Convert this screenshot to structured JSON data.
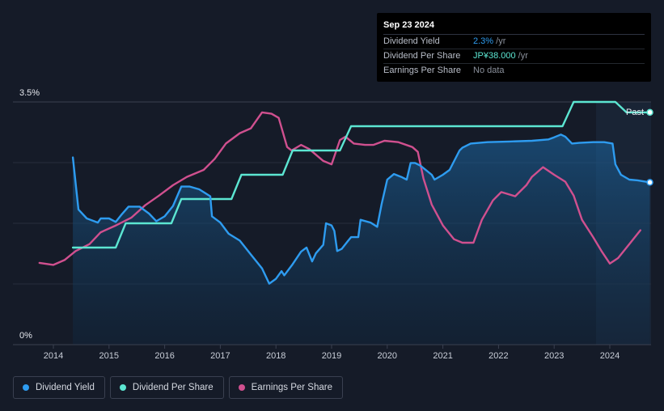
{
  "tooltip": {
    "date": "Sep 23 2024",
    "rows": [
      {
        "label": "Dividend Yield",
        "value": "2.3%",
        "unit": " /yr"
      },
      {
        "label": "Dividend Per Share",
        "value": "JP¥38.000",
        "unit": " /yr"
      },
      {
        "label": "Earnings Per Share",
        "value": "No data",
        "unit": ""
      }
    ]
  },
  "legend": [
    {
      "label": "Dividend Yield",
      "color": "#2e9cf0"
    },
    {
      "label": "Dividend Per Share",
      "color": "#5ce6d2"
    },
    {
      "label": "Earnings Per Share",
      "color": "#d0508f"
    }
  ],
  "chart_data": {
    "type": "line",
    "x_ticks": [
      "2014",
      "2015",
      "2016",
      "2017",
      "2018",
      "2019",
      "2020",
      "2021",
      "2022",
      "2023",
      "2024"
    ],
    "y_ticks": [
      "0%",
      "3.5%"
    ],
    "past_label": "Past",
    "y_range_pct": [
      0,
      3.5
    ],
    "colors": {
      "yield": "#2e9cf0",
      "dps": "#5ce6d2",
      "eps": "#d0508f"
    },
    "series": [
      {
        "key": "yield",
        "name": "Dividend Yield",
        "points": [
          [
            2014.35,
            2.7
          ],
          [
            2014.45,
            1.95
          ],
          [
            2014.6,
            1.82
          ],
          [
            2014.8,
            1.76
          ],
          [
            2014.85,
            1.82
          ],
          [
            2015.0,
            1.82
          ],
          [
            2015.12,
            1.77
          ],
          [
            2015.22,
            1.87
          ],
          [
            2015.35,
            1.99
          ],
          [
            2015.55,
            1.99
          ],
          [
            2015.72,
            1.89
          ],
          [
            2015.85,
            1.78
          ],
          [
            2016.0,
            1.85
          ],
          [
            2016.15,
            2.0
          ],
          [
            2016.3,
            2.28
          ],
          [
            2016.45,
            2.28
          ],
          [
            2016.62,
            2.24
          ],
          [
            2016.82,
            2.14
          ],
          [
            2016.85,
            1.85
          ],
          [
            2017.0,
            1.76
          ],
          [
            2017.15,
            1.6
          ],
          [
            2017.35,
            1.5
          ],
          [
            2017.55,
            1.3
          ],
          [
            2017.75,
            1.1
          ],
          [
            2017.88,
            0.88
          ],
          [
            2018.0,
            0.95
          ],
          [
            2018.1,
            1.06
          ],
          [
            2018.15,
            1.0
          ],
          [
            2018.3,
            1.16
          ],
          [
            2018.45,
            1.34
          ],
          [
            2018.55,
            1.4
          ],
          [
            2018.65,
            1.2
          ],
          [
            2018.72,
            1.32
          ],
          [
            2018.85,
            1.44
          ],
          [
            2018.9,
            1.75
          ],
          [
            2019.0,
            1.72
          ],
          [
            2019.05,
            1.64
          ],
          [
            2019.1,
            1.35
          ],
          [
            2019.18,
            1.38
          ],
          [
            2019.3,
            1.5
          ],
          [
            2019.35,
            1.55
          ],
          [
            2019.48,
            1.55
          ],
          [
            2019.52,
            1.8
          ],
          [
            2019.7,
            1.76
          ],
          [
            2019.82,
            1.7
          ],
          [
            2019.9,
            2.03
          ],
          [
            2020.0,
            2.38
          ],
          [
            2020.12,
            2.46
          ],
          [
            2020.25,
            2.42
          ],
          [
            2020.35,
            2.38
          ],
          [
            2020.42,
            2.62
          ],
          [
            2020.5,
            2.62
          ],
          [
            2020.6,
            2.58
          ],
          [
            2020.8,
            2.45
          ],
          [
            2020.85,
            2.38
          ],
          [
            2021.0,
            2.45
          ],
          [
            2021.12,
            2.52
          ],
          [
            2021.3,
            2.8
          ],
          [
            2021.35,
            2.84
          ],
          [
            2021.5,
            2.9
          ],
          [
            2021.8,
            2.92
          ],
          [
            2022.2,
            2.93
          ],
          [
            2022.6,
            2.94
          ],
          [
            2022.9,
            2.96
          ],
          [
            2023.0,
            2.99
          ],
          [
            2023.12,
            3.03
          ],
          [
            2023.2,
            3.0
          ],
          [
            2023.32,
            2.9
          ],
          [
            2023.45,
            2.91
          ],
          [
            2023.7,
            2.92
          ],
          [
            2023.9,
            2.92
          ],
          [
            2024.05,
            2.9
          ],
          [
            2024.1,
            2.6
          ],
          [
            2024.2,
            2.45
          ],
          [
            2024.35,
            2.38
          ],
          [
            2024.5,
            2.37
          ],
          [
            2024.72,
            2.34
          ]
        ]
      },
      {
        "key": "dps",
        "name": "Dividend Per Share",
        "points": [
          [
            2014.35,
            1.4
          ],
          [
            2015.12,
            1.4
          ],
          [
            2015.3,
            1.75
          ],
          [
            2016.12,
            1.75
          ],
          [
            2016.3,
            2.1
          ],
          [
            2017.2,
            2.1
          ],
          [
            2017.38,
            2.45
          ],
          [
            2018.12,
            2.45
          ],
          [
            2018.3,
            2.8
          ],
          [
            2019.15,
            2.8
          ],
          [
            2019.35,
            3.15
          ],
          [
            2023.15,
            3.15
          ],
          [
            2023.35,
            3.5
          ],
          [
            2024.1,
            3.5
          ],
          [
            2024.3,
            3.35
          ],
          [
            2024.72,
            3.35
          ]
        ]
      },
      {
        "key": "eps",
        "name": "Earnings Per Share",
        "points": [
          [
            2013.75,
            1.18
          ],
          [
            2014.0,
            1.15
          ],
          [
            2014.2,
            1.22
          ],
          [
            2014.4,
            1.35
          ],
          [
            2014.65,
            1.45
          ],
          [
            2014.85,
            1.62
          ],
          [
            2015.1,
            1.71
          ],
          [
            2015.4,
            1.83
          ],
          [
            2015.65,
            2.01
          ],
          [
            2015.9,
            2.15
          ],
          [
            2016.15,
            2.3
          ],
          [
            2016.4,
            2.42
          ],
          [
            2016.7,
            2.52
          ],
          [
            2016.9,
            2.68
          ],
          [
            2017.1,
            2.9
          ],
          [
            2017.35,
            3.05
          ],
          [
            2017.55,
            3.12
          ],
          [
            2017.75,
            3.35
          ],
          [
            2017.92,
            3.33
          ],
          [
            2018.05,
            3.27
          ],
          [
            2018.2,
            2.85
          ],
          [
            2018.28,
            2.8
          ],
          [
            2018.45,
            2.88
          ],
          [
            2018.6,
            2.82
          ],
          [
            2018.85,
            2.65
          ],
          [
            2019.0,
            2.6
          ],
          [
            2019.15,
            2.95
          ],
          [
            2019.25,
            3.0
          ],
          [
            2019.4,
            2.9
          ],
          [
            2019.6,
            2.88
          ],
          [
            2019.75,
            2.88
          ],
          [
            2019.95,
            2.94
          ],
          [
            2020.2,
            2.92
          ],
          [
            2020.45,
            2.85
          ],
          [
            2020.55,
            2.78
          ],
          [
            2020.65,
            2.4
          ],
          [
            2020.8,
            2.02
          ],
          [
            2021.0,
            1.72
          ],
          [
            2021.2,
            1.52
          ],
          [
            2021.35,
            1.47
          ],
          [
            2021.55,
            1.47
          ],
          [
            2021.7,
            1.8
          ],
          [
            2021.9,
            2.08
          ],
          [
            2022.05,
            2.2
          ],
          [
            2022.3,
            2.14
          ],
          [
            2022.5,
            2.3
          ],
          [
            2022.6,
            2.42
          ],
          [
            2022.8,
            2.56
          ],
          [
            2023.0,
            2.45
          ],
          [
            2023.2,
            2.35
          ],
          [
            2023.35,
            2.15
          ],
          [
            2023.5,
            1.8
          ],
          [
            2023.7,
            1.55
          ],
          [
            2023.85,
            1.35
          ],
          [
            2024.0,
            1.17
          ],
          [
            2024.15,
            1.25
          ],
          [
            2024.35,
            1.45
          ],
          [
            2024.55,
            1.65
          ]
        ]
      }
    ]
  }
}
